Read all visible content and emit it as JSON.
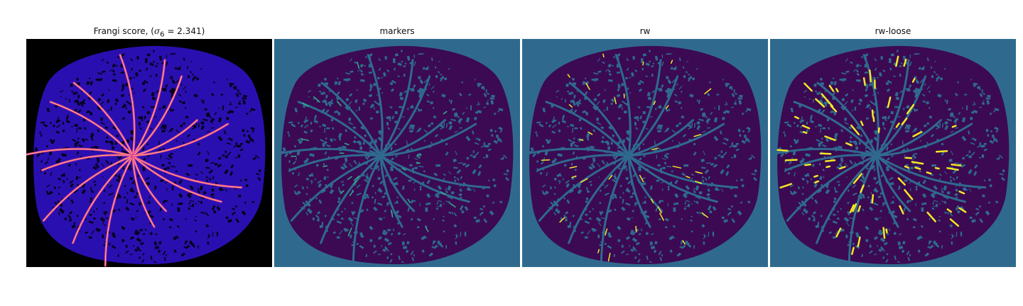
{
  "figure": {
    "panels": [
      {
        "title_prefix": "Frangi score, (",
        "title_sigma": "σ",
        "title_sub": "6",
        "title_suffix": " = 2.341)",
        "colors": {
          "background": "#000000",
          "fill": "#2a0fb0",
          "holes": "#050220",
          "vessel": "#e0409f",
          "vessel_core": "#ffb36b"
        }
      },
      {
        "title": "markers",
        "colors": {
          "background": "#2f6a8e",
          "fill": "#3b0a52",
          "holes": "#2f6a8e",
          "vessel": "#2f6a8e",
          "accent": "#31b38a"
        }
      },
      {
        "title": "rw",
        "colors": {
          "background": "#2f6a8e",
          "fill": "#3b0a52",
          "holes": "#2f6a8e",
          "vessel": "#2f6a8e",
          "accent": "#f2e826"
        }
      },
      {
        "title": "rw-loose",
        "colors": {
          "background": "#2f6a8e",
          "fill": "#3b0a52",
          "holes": "#2f6a8e",
          "vessel": "#2f6a8e",
          "accent": "#f2e826"
        }
      }
    ]
  }
}
